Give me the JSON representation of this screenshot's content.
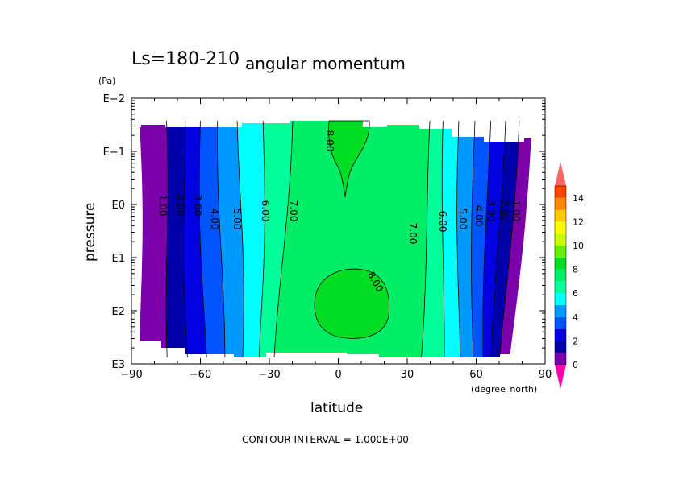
{
  "chart_data": {
    "type": "contour",
    "title_left": "Ls=180-210",
    "title": "angular momentum",
    "xlabel": "latitude",
    "x_unit": "(degree_north)",
    "ylabel": "pressure",
    "y_unit": "(Pa)",
    "xlim": [
      -90,
      90
    ],
    "x_ticks": [
      "−90",
      "−60",
      "−30",
      "0",
      "30",
      "60",
      "90"
    ],
    "y_scale": "log",
    "y_ticks": [
      "E3",
      "E2",
      "E1",
      "E0",
      "E−1",
      "E−2"
    ],
    "contour_interval_text": "CONTOUR INTERVAL = 1.000E+00",
    "contour_labels": [
      "1.00",
      "2.00",
      "3.00",
      "4.00",
      "5.00",
      "6.00",
      "7.00",
      "8.00",
      "8.00",
      "7.00",
      "6.00",
      "5.00",
      "4.00",
      "3.00",
      "2.00",
      "1.00"
    ],
    "colorbar": {
      "ticks": [
        "0",
        "2",
        "4",
        "6",
        "8",
        "10",
        "12",
        "14"
      ],
      "levels": [
        0,
        1,
        2,
        3,
        4,
        5,
        6,
        7,
        8,
        9,
        10,
        11,
        12,
        13,
        14,
        15
      ],
      "colors": [
        "#7a00aa",
        "#0000aa",
        "#0000e0",
        "#0055ff",
        "#0099ff",
        "#00ffff",
        "#00ff99",
        "#00ee66",
        "#00dd22",
        "#66ee00",
        "#ccff00",
        "#ffff00",
        "#ffcc00",
        "#ff8800",
        "#ff4400",
        "#ff0000"
      ],
      "under_color": "#ff00aa",
      "over_color": "#ff6666"
    }
  }
}
